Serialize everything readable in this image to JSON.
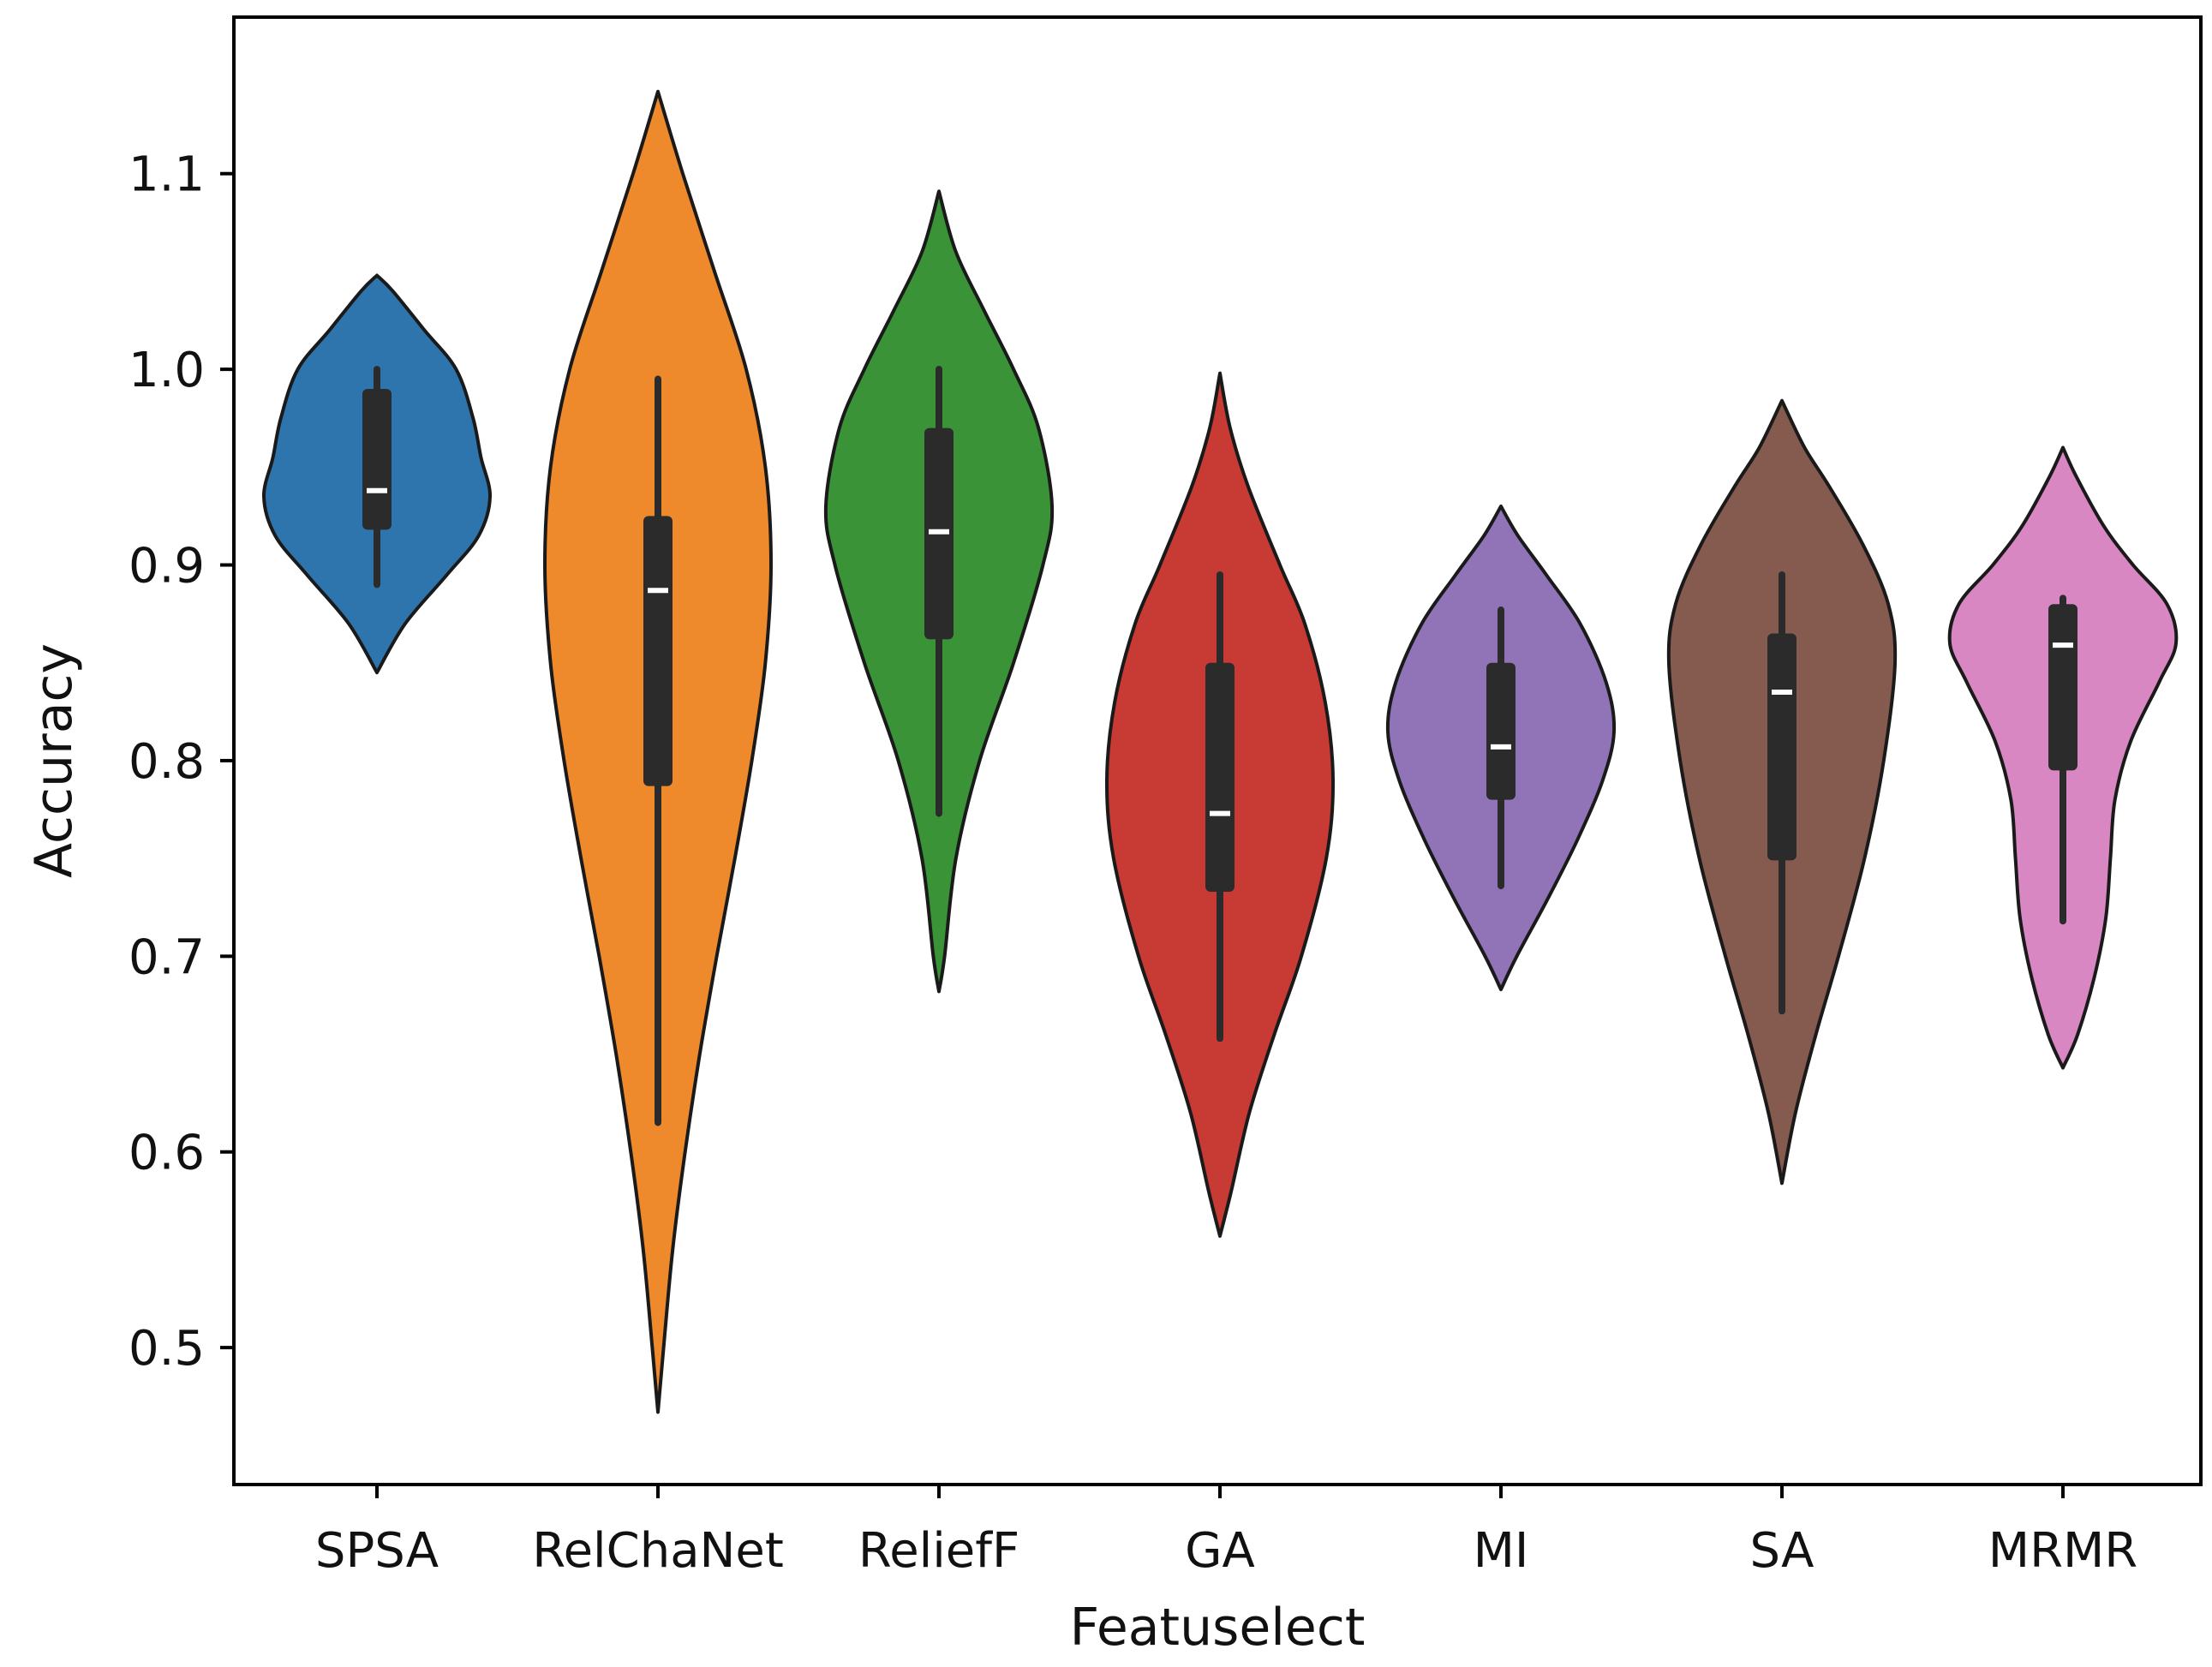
{
  "chart_data": {
    "type": "violin",
    "xlabel": "Featuselect",
    "ylabel": "Accuracy",
    "ylim": [
      0.43,
      1.18
    ],
    "yticks": [
      0.5,
      0.6,
      0.7,
      0.8,
      0.9,
      1.0,
      1.1
    ],
    "ytick_labels": [
      "0.5",
      "0.6",
      "0.7",
      "0.8",
      "0.9",
      "1.0",
      "1.1"
    ],
    "grid": false,
    "legend": "none",
    "categories": [
      "SPSA",
      "RelChaNet",
      "ReliefF",
      "GA",
      "MI",
      "SA",
      "MRMR"
    ],
    "series": [
      {
        "category": "SPSA",
        "color": "#2e74ad",
        "whisker_low": 0.89,
        "q1": 0.918,
        "median": 0.938,
        "q3": 0.99,
        "whisker_high": 1.0,
        "profile": [
          [
            0.845,
            0
          ],
          [
            0.87,
            0.25
          ],
          [
            0.895,
            0.62
          ],
          [
            0.915,
            0.9
          ],
          [
            0.935,
            1.0
          ],
          [
            0.955,
            0.92
          ],
          [
            0.975,
            0.85
          ],
          [
            1.0,
            0.7
          ],
          [
            1.02,
            0.42
          ],
          [
            1.04,
            0.14
          ],
          [
            1.048,
            0
          ]
        ]
      },
      {
        "category": "RelChaNet",
        "color": "#ef8a2c",
        "whisker_low": 0.615,
        "q1": 0.787,
        "median": 0.887,
        "q3": 0.925,
        "whisker_high": 0.995,
        "profile": [
          [
            0.467,
            0
          ],
          [
            0.5,
            0.05
          ],
          [
            0.55,
            0.13
          ],
          [
            0.6,
            0.24
          ],
          [
            0.65,
            0.37
          ],
          [
            0.7,
            0.52
          ],
          [
            0.75,
            0.68
          ],
          [
            0.8,
            0.83
          ],
          [
            0.85,
            0.95
          ],
          [
            0.9,
            1.0
          ],
          [
            0.95,
            0.95
          ],
          [
            1.0,
            0.78
          ],
          [
            1.05,
            0.5
          ],
          [
            1.1,
            0.22
          ],
          [
            1.142,
            0
          ]
        ]
      },
      {
        "category": "ReliefF",
        "color": "#3a9337",
        "whisker_low": 0.773,
        "q1": 0.862,
        "median": 0.917,
        "q3": 0.97,
        "whisker_high": 1.0,
        "profile": [
          [
            0.682,
            0
          ],
          [
            0.7,
            0.05
          ],
          [
            0.75,
            0.15
          ],
          [
            0.8,
            0.36
          ],
          [
            0.85,
            0.66
          ],
          [
            0.9,
            0.92
          ],
          [
            0.93,
            1.0
          ],
          [
            0.97,
            0.88
          ],
          [
            1.0,
            0.66
          ],
          [
            1.03,
            0.4
          ],
          [
            1.06,
            0.15
          ],
          [
            1.091,
            0
          ]
        ]
      },
      {
        "category": "GA",
        "color": "#c83a34",
        "whisker_low": 0.658,
        "q1": 0.733,
        "median": 0.773,
        "q3": 0.85,
        "whisker_high": 0.895,
        "profile": [
          [
            0.557,
            0
          ],
          [
            0.58,
            0.1
          ],
          [
            0.62,
            0.26
          ],
          [
            0.66,
            0.48
          ],
          [
            0.7,
            0.72
          ],
          [
            0.75,
            0.94
          ],
          [
            0.79,
            1.0
          ],
          [
            0.83,
            0.93
          ],
          [
            0.87,
            0.75
          ],
          [
            0.9,
            0.53
          ],
          [
            0.94,
            0.25
          ],
          [
            0.97,
            0.09
          ],
          [
            0.998,
            0
          ]
        ]
      },
      {
        "category": "MI",
        "color": "#9174b8",
        "whisker_low": 0.736,
        "q1": 0.78,
        "median": 0.807,
        "q3": 0.85,
        "whisker_high": 0.877,
        "profile": [
          [
            0.683,
            0
          ],
          [
            0.7,
            0.14
          ],
          [
            0.73,
            0.42
          ],
          [
            0.76,
            0.68
          ],
          [
            0.79,
            0.9
          ],
          [
            0.815,
            1.0
          ],
          [
            0.84,
            0.93
          ],
          [
            0.87,
            0.7
          ],
          [
            0.895,
            0.4
          ],
          [
            0.915,
            0.15
          ],
          [
            0.93,
            0
          ]
        ]
      },
      {
        "category": "SA",
        "color": "#855a4f",
        "whisker_low": 0.672,
        "q1": 0.749,
        "median": 0.835,
        "q3": 0.865,
        "whisker_high": 0.895,
        "profile": [
          [
            0.584,
            0
          ],
          [
            0.62,
            0.12
          ],
          [
            0.66,
            0.3
          ],
          [
            0.7,
            0.5
          ],
          [
            0.75,
            0.73
          ],
          [
            0.8,
            0.9
          ],
          [
            0.85,
            1.0
          ],
          [
            0.88,
            0.94
          ],
          [
            0.91,
            0.72
          ],
          [
            0.94,
            0.42
          ],
          [
            0.96,
            0.2
          ],
          [
            0.984,
            0
          ]
        ]
      },
      {
        "category": "MRMR",
        "color": "#d987c3",
        "whisker_low": 0.718,
        "q1": 0.795,
        "median": 0.859,
        "q3": 0.88,
        "whisker_high": 0.883,
        "profile": [
          [
            0.643,
            0
          ],
          [
            0.66,
            0.13
          ],
          [
            0.69,
            0.28
          ],
          [
            0.72,
            0.38
          ],
          [
            0.75,
            0.42
          ],
          [
            0.78,
            0.46
          ],
          [
            0.81,
            0.6
          ],
          [
            0.84,
            0.85
          ],
          [
            0.86,
            1.0
          ],
          [
            0.88,
            0.92
          ],
          [
            0.9,
            0.62
          ],
          [
            0.92,
            0.36
          ],
          [
            0.945,
            0.12
          ],
          [
            0.96,
            0
          ]
        ]
      }
    ]
  }
}
